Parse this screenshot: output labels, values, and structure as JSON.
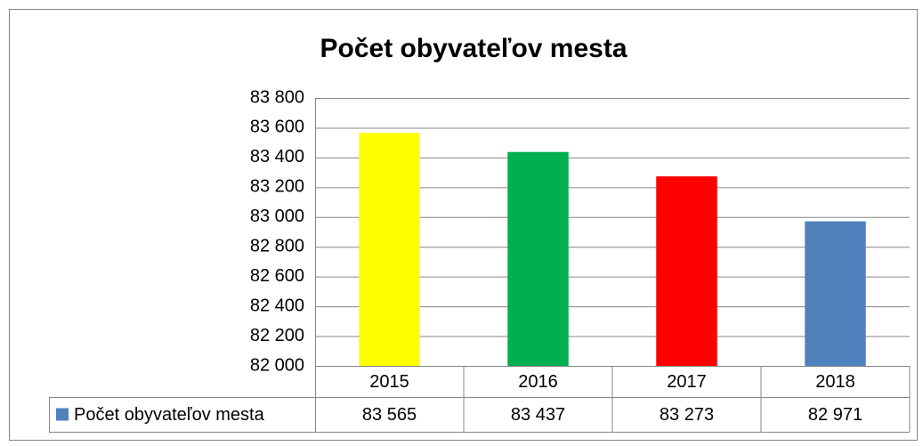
{
  "chart_data": {
    "type": "bar",
    "title": "Počet obyvateľov mesta",
    "categories": [
      "2015",
      "2016",
      "2017",
      "2018"
    ],
    "series": [
      {
        "name": "Počet obyvateľov mesta",
        "color": "#4f81bd",
        "colors": [
          "#ffff00",
          "#00b050",
          "#ff0000",
          "#4f81bd"
        ],
        "values": [
          83565,
          83437,
          83273,
          82971
        ],
        "value_labels": [
          "83 565",
          "83 437",
          "83 273",
          "82 971"
        ]
      }
    ],
    "ylim": [
      82000,
      83800
    ],
    "yticks": [
      {
        "value": 82000,
        "label": "82 000"
      },
      {
        "value": 82200,
        "label": "82 200"
      },
      {
        "value": 82400,
        "label": "82 400"
      },
      {
        "value": 82600,
        "label": "82 600"
      },
      {
        "value": 82800,
        "label": "82 800"
      },
      {
        "value": 83000,
        "label": "83 000"
      },
      {
        "value": 83200,
        "label": "83 200"
      },
      {
        "value": 83400,
        "label": "83 400"
      },
      {
        "value": 83600,
        "label": "83 600"
      },
      {
        "value": 83800,
        "label": "83 800"
      }
    ],
    "grid": true,
    "data_table": true
  }
}
